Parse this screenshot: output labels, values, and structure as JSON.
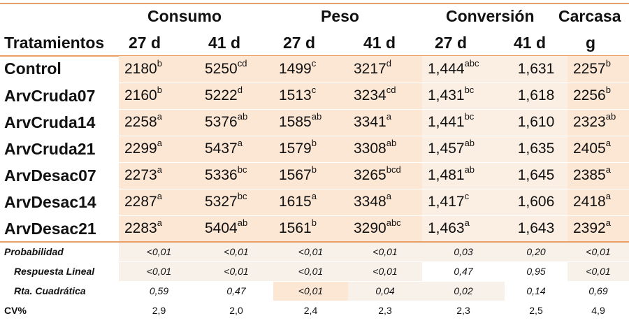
{
  "header": {
    "groups": {
      "consumo": "Consumo",
      "peso": "Peso",
      "conversion": "Conversión",
      "carcasa": "Carcasa"
    },
    "row_label": "Tratamientos",
    "sub": {
      "c27": "27 d",
      "c41": "41 d",
      "p27": "27 d",
      "p41": "41 d",
      "v27": "27 d",
      "v41": "41 d",
      "carcasa_unit": "g"
    }
  },
  "rows": [
    {
      "name": "Control",
      "c27": {
        "v": "2180",
        "s": "b"
      },
      "c41": {
        "v": "5250",
        "s": "cd"
      },
      "p27": {
        "v": "1499",
        "s": "c"
      },
      "p41": {
        "v": "3217",
        "s": "d"
      },
      "v27": {
        "v": "1,444",
        "s": "abc"
      },
      "v41": {
        "v": "1,631",
        "s": ""
      },
      "g": {
        "v": "2257",
        "s": "b"
      }
    },
    {
      "name": "ArvCruda07",
      "c27": {
        "v": "2160",
        "s": "b"
      },
      "c41": {
        "v": "5222",
        "s": "d"
      },
      "p27": {
        "v": "1513",
        "s": "c"
      },
      "p41": {
        "v": "3234",
        "s": "cd"
      },
      "v27": {
        "v": "1,431",
        "s": "bc"
      },
      "v41": {
        "v": "1,618",
        "s": ""
      },
      "g": {
        "v": "2256",
        "s": "b"
      }
    },
    {
      "name": "ArvCruda14",
      "c27": {
        "v": "2258",
        "s": "a"
      },
      "c41": {
        "v": "5376",
        "s": "ab"
      },
      "p27": {
        "v": "1585",
        "s": "ab"
      },
      "p41": {
        "v": "3341",
        "s": "a"
      },
      "v27": {
        "v": "1,441",
        "s": "bc"
      },
      "v41": {
        "v": "1,610",
        "s": ""
      },
      "g": {
        "v": "2323",
        "s": "ab"
      }
    },
    {
      "name": "ArvCruda21",
      "c27": {
        "v": "2299",
        "s": "a"
      },
      "c41": {
        "v": "5437",
        "s": "a"
      },
      "p27": {
        "v": "1579",
        "s": "b"
      },
      "p41": {
        "v": "3308",
        "s": "ab"
      },
      "v27": {
        "v": "1,457",
        "s": "ab"
      },
      "v41": {
        "v": "1,635",
        "s": ""
      },
      "g": {
        "v": "2405",
        "s": "a"
      }
    },
    {
      "name": "ArvDesac07",
      "c27": {
        "v": "2273",
        "s": "a"
      },
      "c41": {
        "v": "5336",
        "s": "bc"
      },
      "p27": {
        "v": "1567",
        "s": "b"
      },
      "p41": {
        "v": "3265",
        "s": "bcd"
      },
      "v27": {
        "v": "1,481",
        "s": "ab"
      },
      "v41": {
        "v": "1,645",
        "s": ""
      },
      "g": {
        "v": "2385",
        "s": "a"
      }
    },
    {
      "name": "ArvDesac14",
      "c27": {
        "v": "2287",
        "s": "a"
      },
      "c41": {
        "v": "5327",
        "s": "bc"
      },
      "p27": {
        "v": "1615",
        "s": "a"
      },
      "p41": {
        "v": "3348",
        "s": "a"
      },
      "v27": {
        "v": "1,417",
        "s": "c"
      },
      "v41": {
        "v": "1,606",
        "s": ""
      },
      "g": {
        "v": "2418",
        "s": "a"
      }
    },
    {
      "name": "ArvDesac21",
      "c27": {
        "v": "2283",
        "s": "a"
      },
      "c41": {
        "v": "5404",
        "s": "ab"
      },
      "p27": {
        "v": "1561",
        "s": "b"
      },
      "p41": {
        "v": "3290",
        "s": "abc"
      },
      "v27": {
        "v": "1,463",
        "s": "a"
      },
      "v41": {
        "v": "1,643",
        "s": ""
      },
      "g": {
        "v": "2392",
        "s": "a"
      }
    }
  ],
  "stats": [
    {
      "name": "Probabilidad",
      "vals": [
        "<0,01",
        "<0,01",
        "<0,01",
        "<0,01",
        "0,03",
        "0,20",
        "<0,01"
      ]
    },
    {
      "name": "Respuesta Lineal",
      "vals": [
        "<0,01",
        "<0,01",
        "<0,01",
        "<0,01",
        "0,47",
        "0,95",
        "<0,01"
      ]
    },
    {
      "name": "Rta. Cuadrática",
      "vals": [
        "0,59",
        "0,47",
        "<0,01",
        "0,04",
        "0,02",
        "0,14",
        "0,69"
      ]
    }
  ],
  "cv": {
    "name": "CV%",
    "vals": [
      "2,9",
      "2,0",
      "2,4",
      "2,3",
      "2,3",
      "2,5",
      "4,9"
    ]
  }
}
